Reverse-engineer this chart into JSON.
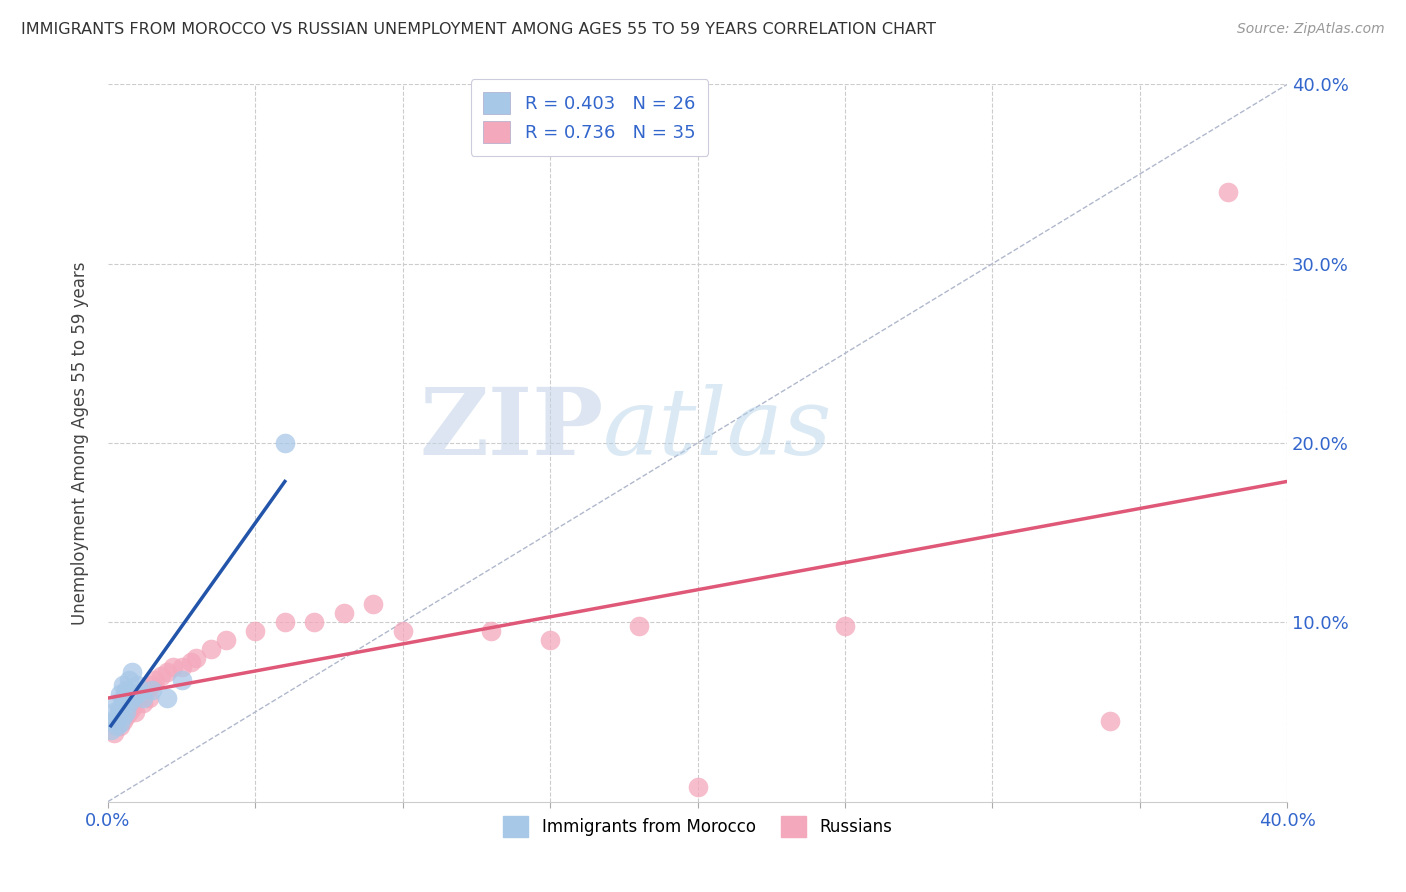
{
  "title": "IMMIGRANTS FROM MOROCCO VS RUSSIAN UNEMPLOYMENT AMONG AGES 55 TO 59 YEARS CORRELATION CHART",
  "source": "Source: ZipAtlas.com",
  "ylabel": "Unemployment Among Ages 55 to 59 years",
  "xlim": [
    0.0,
    0.4
  ],
  "ylim": [
    0.0,
    0.4
  ],
  "morocco_R": 0.403,
  "morocco_N": 26,
  "russian_R": 0.736,
  "russian_N": 35,
  "morocco_color": "#a8c8e8",
  "russian_color": "#f4a8bc",
  "morocco_line_color": "#2255aa",
  "russian_line_color": "#e05878",
  "diagonal_color": "#b0b8cc",
  "watermark_ZIP": "ZIP",
  "watermark_atlas": "atlas",
  "background_color": "#ffffff",
  "grid_color": "#cccccc",
  "morocco_x": [
    0.001,
    0.002,
    0.002,
    0.003,
    0.003,
    0.003,
    0.004,
    0.004,
    0.004,
    0.005,
    0.005,
    0.005,
    0.006,
    0.006,
    0.007,
    0.007,
    0.008,
    0.008,
    0.009,
    0.01,
    0.01,
    0.012,
    0.015,
    0.02,
    0.025,
    0.06
  ],
  "morocco_y": [
    0.04,
    0.045,
    0.05,
    0.042,
    0.048,
    0.055,
    0.044,
    0.052,
    0.06,
    0.048,
    0.058,
    0.065,
    0.05,
    0.062,
    0.055,
    0.068,
    0.058,
    0.072,
    0.06,
    0.06,
    0.065,
    0.058,
    0.062,
    0.058,
    0.068,
    0.2
  ],
  "russian_x": [
    0.002,
    0.004,
    0.005,
    0.006,
    0.007,
    0.008,
    0.009,
    0.01,
    0.011,
    0.012,
    0.013,
    0.014,
    0.015,
    0.016,
    0.018,
    0.02,
    0.022,
    0.025,
    0.028,
    0.03,
    0.035,
    0.04,
    0.05,
    0.06,
    0.07,
    0.08,
    0.09,
    0.1,
    0.13,
    0.15,
    0.18,
    0.2,
    0.25,
    0.34,
    0.38
  ],
  "russian_y": [
    0.038,
    0.042,
    0.045,
    0.048,
    0.05,
    0.052,
    0.05,
    0.058,
    0.06,
    0.055,
    0.062,
    0.058,
    0.065,
    0.068,
    0.07,
    0.072,
    0.075,
    0.075,
    0.078,
    0.08,
    0.085,
    0.09,
    0.095,
    0.1,
    0.1,
    0.105,
    0.11,
    0.095,
    0.095,
    0.09,
    0.098,
    0.008,
    0.098,
    0.045,
    0.34
  ]
}
